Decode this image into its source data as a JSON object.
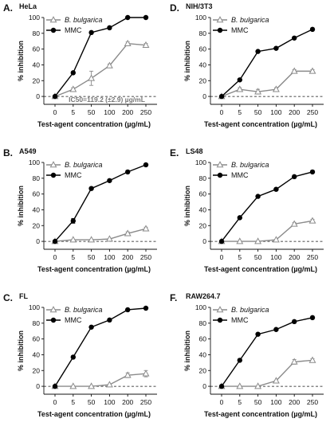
{
  "chart_data": [
    {
      "type": "line",
      "panel_label": "A.",
      "cell_line": "HeLa",
      "xlabel": "Test-agent concentration (µg/mL)",
      "ylabel": "% inhibition",
      "categories": [
        "0",
        "5",
        "50",
        "100",
        "200",
        "250"
      ],
      "ylim": [
        -10,
        100
      ],
      "yticks": [
        0,
        20,
        40,
        60,
        80,
        100
      ],
      "legend_position": "top-left",
      "series": [
        {
          "name": "B. bulgarica",
          "color": "#8a8a8a",
          "marker": "open-triangle",
          "values": [
            0,
            9,
            23,
            39,
            67,
            65
          ],
          "errors": [
            0,
            2,
            9,
            2,
            2,
            2
          ]
        },
        {
          "name": "MMC",
          "color": "#000000",
          "marker": "filled-circle",
          "values": [
            0,
            30,
            81,
            87,
            100,
            100
          ],
          "errors": [
            0,
            0,
            0,
            0,
            0,
            0
          ]
        }
      ],
      "annotation": "IC50=119.2 (±2.9) µg/mL"
    },
    {
      "type": "line",
      "panel_label": "B.",
      "cell_line": "A549",
      "xlabel": "Test-agent concentration (µg/mL)",
      "ylabel": "% inhibition",
      "categories": [
        "0",
        "5",
        "50",
        "100",
        "200",
        "250"
      ],
      "ylim": [
        -10,
        100
      ],
      "yticks": [
        0,
        20,
        40,
        60,
        80,
        100
      ],
      "legend_position": "top-left",
      "series": [
        {
          "name": "B. bulgarica",
          "color": "#8a8a8a",
          "marker": "open-triangle",
          "values": [
            0,
            2,
            2,
            3,
            10,
            16
          ],
          "errors": [
            0,
            1,
            1,
            1,
            2,
            2
          ]
        },
        {
          "name": "MMC",
          "color": "#000000",
          "marker": "filled-circle",
          "values": [
            0,
            26,
            67,
            77,
            88,
            97
          ],
          "errors": [
            0,
            3,
            0,
            0,
            0,
            0
          ]
        }
      ]
    },
    {
      "type": "line",
      "panel_label": "C.",
      "cell_line": "FL",
      "xlabel": "Test-agent concentration (µg/mL)",
      "ylabel": "% inhibition",
      "categories": [
        "0",
        "5",
        "50",
        "100",
        "200",
        "250"
      ],
      "ylim": [
        -10,
        100
      ],
      "yticks": [
        0,
        20,
        40,
        60,
        80,
        100
      ],
      "legend_position": "top-left",
      "series": [
        {
          "name": "B. bulgarica",
          "color": "#8a8a8a",
          "marker": "open-triangle",
          "values": [
            0,
            0,
            0,
            2,
            14,
            16
          ],
          "errors": [
            0,
            0,
            0,
            1,
            3,
            4
          ]
        },
        {
          "name": "MMC",
          "color": "#000000",
          "marker": "filled-circle",
          "values": [
            0,
            37,
            75,
            84,
            97,
            99
          ],
          "errors": [
            0,
            0,
            0,
            0,
            0,
            0
          ]
        }
      ]
    },
    {
      "type": "line",
      "panel_label": "D.",
      "cell_line": "NIH/3T3",
      "xlabel": "Test-agent concentration (µg/mL)",
      "ylabel": "% inhibition",
      "categories": [
        "0",
        "5",
        "50",
        "100",
        "200",
        "250"
      ],
      "ylim": [
        -10,
        100
      ],
      "yticks": [
        0,
        20,
        40,
        60,
        80,
        100
      ],
      "legend_position": "top-left",
      "series": [
        {
          "name": "B. bulgarica",
          "color": "#8a8a8a",
          "marker": "open-triangle",
          "values": [
            0,
            9,
            6,
            9,
            32,
            32
          ],
          "errors": [
            0,
            2,
            3,
            2,
            2,
            2
          ]
        },
        {
          "name": "MMC",
          "color": "#000000",
          "marker": "filled-circle",
          "values": [
            0,
            21,
            57,
            61,
            74,
            85
          ],
          "errors": [
            0,
            0,
            0,
            0,
            0,
            0
          ]
        }
      ]
    },
    {
      "type": "line",
      "panel_label": "E.",
      "cell_line": "LS48",
      "xlabel": "Test-agent concentration (µg/mL)",
      "ylabel": "% inhibition",
      "categories": [
        "0",
        "5",
        "50",
        "100",
        "200",
        "250"
      ],
      "ylim": [
        -10,
        100
      ],
      "yticks": [
        0,
        20,
        40,
        60,
        80,
        100
      ],
      "legend_position": "top-left",
      "series": [
        {
          "name": "B. bulgarica",
          "color": "#8a8a8a",
          "marker": "open-triangle",
          "values": [
            0,
            0,
            0,
            2,
            22,
            26
          ],
          "errors": [
            0,
            0,
            0,
            1,
            2,
            2
          ]
        },
        {
          "name": "MMC",
          "color": "#000000",
          "marker": "filled-circle",
          "values": [
            0,
            30,
            57,
            66,
            82,
            88
          ],
          "errors": [
            0,
            0,
            0,
            0,
            0,
            0
          ]
        }
      ]
    },
    {
      "type": "line",
      "panel_label": "F.",
      "cell_line": "RAW264.7",
      "xlabel": "Test-agent concentration (µg/mL)",
      "ylabel": "% inhibition",
      "categories": [
        "0",
        "5",
        "50",
        "100",
        "200",
        "250"
      ],
      "ylim": [
        -10,
        100
      ],
      "yticks": [
        0,
        20,
        40,
        60,
        80,
        100
      ],
      "legend_position": "top-left",
      "series": [
        {
          "name": "B. bulgarica",
          "color": "#8a8a8a",
          "marker": "open-triangle",
          "values": [
            0,
            0,
            0,
            7,
            31,
            33
          ],
          "errors": [
            0,
            0,
            0,
            1,
            3,
            2
          ]
        },
        {
          "name": "MMC",
          "color": "#000000",
          "marker": "filled-circle",
          "values": [
            0,
            33,
            66,
            72,
            82,
            87
          ],
          "errors": [
            0,
            0,
            0,
            0,
            0,
            0
          ]
        }
      ]
    }
  ]
}
